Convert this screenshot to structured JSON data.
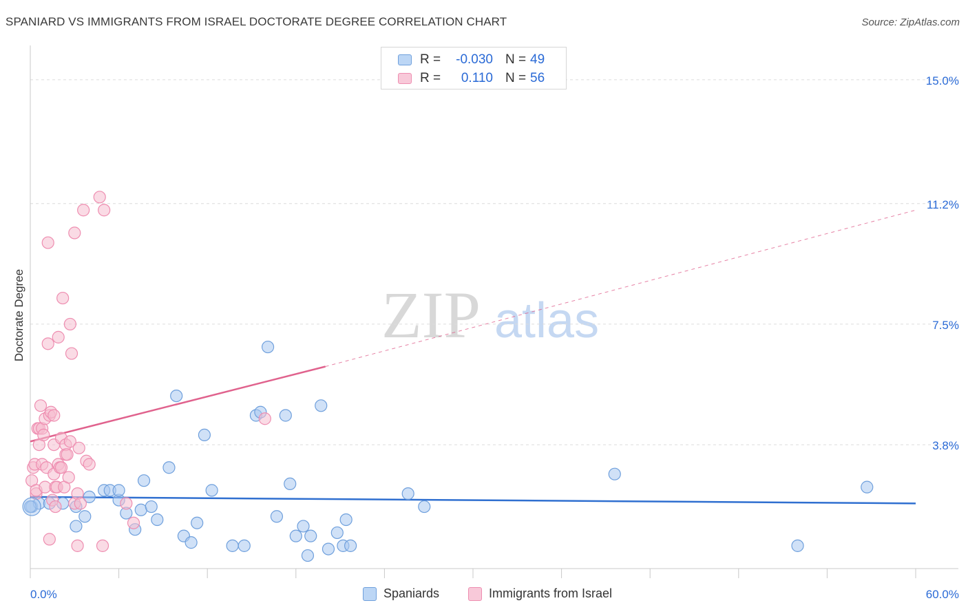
{
  "title": "SPANIARD VS IMMIGRANTS FROM ISRAEL DOCTORATE DEGREE CORRELATION CHART",
  "source": "Source: ZipAtlas.com",
  "watermark": {
    "zip": "ZIP",
    "atlas": "atlas"
  },
  "legend_top": {
    "rows": [
      {
        "r_label": "R =",
        "r_value": "-0.030",
        "n_label": "N =",
        "n_value": "49"
      },
      {
        "r_label": "R =",
        "r_value": "0.110",
        "n_label": "N =",
        "n_value": "56"
      }
    ]
  },
  "colors": {
    "blue_fill": "#a9c8f0",
    "blue_stroke": "#6e9fdc",
    "blue_line": "#2f6fd0",
    "pink_fill": "#f6bdd0",
    "pink_stroke": "#ee8db0",
    "pink_line": "#e0628d",
    "grid": "#dcdcdc",
    "axis_label": "#2a6ad6"
  },
  "chart_data": {
    "type": "scatter",
    "title": "SPANIARD VS IMMIGRANTS FROM ISRAEL DOCTORATE DEGREE CORRELATION CHART",
    "xlabel": "",
    "ylabel": "Doctorate Degree",
    "xlim": [
      0,
      60
    ],
    "ylim": [
      0,
      15.8
    ],
    "x_tick_labels": {
      "left": "0.0%",
      "right": "60.0%"
    },
    "y_ticks": [
      3.8,
      7.5,
      11.2,
      15.0
    ],
    "y_tick_labels": [
      "3.8%",
      "7.5%",
      "11.2%",
      "15.0%"
    ],
    "series": [
      {
        "name": "Spaniards",
        "color": "blue",
        "points": [
          [
            0.1,
            1.9
          ],
          [
            0.6,
            2.0
          ],
          [
            1.3,
            2.0
          ],
          [
            2.2,
            2.0
          ],
          [
            3.1,
            1.3
          ],
          [
            3.1,
            1.9
          ],
          [
            3.7,
            1.6
          ],
          [
            4.0,
            2.2
          ],
          [
            5.0,
            2.4
          ],
          [
            5.4,
            2.4
          ],
          [
            6.0,
            2.1
          ],
          [
            6.0,
            2.4
          ],
          [
            6.5,
            1.7
          ],
          [
            7.1,
            1.2
          ],
          [
            7.5,
            1.8
          ],
          [
            7.7,
            2.7
          ],
          [
            8.2,
            1.9
          ],
          [
            8.6,
            1.5
          ],
          [
            9.4,
            3.1
          ],
          [
            9.9,
            5.3
          ],
          [
            10.4,
            1.0
          ],
          [
            10.9,
            0.8
          ],
          [
            11.3,
            1.4
          ],
          [
            11.8,
            4.1
          ],
          [
            12.3,
            2.4
          ],
          [
            13.7,
            0.7
          ],
          [
            14.5,
            0.7
          ],
          [
            15.3,
            4.7
          ],
          [
            15.6,
            4.8
          ],
          [
            16.1,
            6.8
          ],
          [
            16.7,
            1.6
          ],
          [
            17.3,
            4.7
          ],
          [
            17.6,
            2.6
          ],
          [
            18.0,
            1.0
          ],
          [
            18.5,
            1.3
          ],
          [
            18.8,
            0.4
          ],
          [
            19.0,
            1.0
          ],
          [
            19.7,
            5.0
          ],
          [
            20.2,
            0.6
          ],
          [
            20.8,
            1.1
          ],
          [
            21.2,
            0.7
          ],
          [
            21.4,
            1.5
          ],
          [
            21.7,
            0.7
          ],
          [
            25.6,
            2.3
          ],
          [
            26.7,
            1.9
          ],
          [
            39.6,
            2.9
          ],
          [
            52.0,
            0.7
          ],
          [
            56.7,
            2.5
          ],
          [
            0.0,
            1.9
          ]
        ]
      },
      {
        "name": "Immigrants from Israel",
        "color": "pink",
        "points": [
          [
            0.1,
            2.7
          ],
          [
            0.2,
            3.1
          ],
          [
            0.3,
            3.2
          ],
          [
            0.4,
            2.3
          ],
          [
            0.4,
            2.4
          ],
          [
            0.5,
            4.3
          ],
          [
            0.6,
            3.8
          ],
          [
            0.6,
            4.3
          ],
          [
            0.7,
            5.0
          ],
          [
            0.8,
            3.2
          ],
          [
            0.8,
            4.3
          ],
          [
            0.9,
            4.1
          ],
          [
            1.0,
            2.5
          ],
          [
            1.0,
            4.6
          ],
          [
            1.1,
            3.1
          ],
          [
            1.2,
            6.9
          ],
          [
            1.2,
            10.0
          ],
          [
            1.3,
            0.9
          ],
          [
            1.3,
            4.7
          ],
          [
            1.4,
            4.8
          ],
          [
            1.5,
            2.1
          ],
          [
            1.6,
            2.9
          ],
          [
            1.6,
            3.8
          ],
          [
            1.6,
            4.7
          ],
          [
            1.7,
            2.5
          ],
          [
            1.7,
            1.9
          ],
          [
            1.8,
            2.5
          ],
          [
            1.9,
            3.2
          ],
          [
            1.9,
            7.1
          ],
          [
            2.0,
            3.1
          ],
          [
            2.1,
            3.1
          ],
          [
            2.1,
            4.0
          ],
          [
            2.2,
            8.3
          ],
          [
            2.3,
            2.5
          ],
          [
            2.4,
            3.5
          ],
          [
            2.4,
            3.8
          ],
          [
            2.5,
            3.5
          ],
          [
            2.6,
            2.8
          ],
          [
            2.7,
            7.5
          ],
          [
            2.7,
            3.9
          ],
          [
            2.8,
            6.6
          ],
          [
            3.0,
            2.0
          ],
          [
            3.0,
            10.3
          ],
          [
            3.2,
            0.7
          ],
          [
            3.2,
            2.3
          ],
          [
            3.3,
            3.7
          ],
          [
            3.4,
            2.0
          ],
          [
            3.6,
            11.0
          ],
          [
            3.8,
            3.3
          ],
          [
            4.0,
            3.2
          ],
          [
            4.7,
            11.4
          ],
          [
            4.9,
            0.7
          ],
          [
            5.0,
            11.0
          ],
          [
            6.5,
            2.0
          ],
          [
            7.0,
            1.4
          ],
          [
            15.9,
            4.6
          ]
        ]
      }
    ],
    "trend_lines": [
      {
        "series": "Spaniards",
        "x": [
          0,
          60
        ],
        "y": [
          2.2,
          2.0
        ],
        "style": "solid"
      },
      {
        "series": "Immigrants from Israel",
        "x": [
          0,
          20
        ],
        "y": [
          3.9,
          6.2
        ],
        "style": "solid"
      },
      {
        "series": "Immigrants from Israel",
        "x": [
          20,
          60
        ],
        "y": [
          6.2,
          11.0
        ],
        "style": "dashed"
      }
    ],
    "legend": [
      "Spaniards",
      "Immigrants from Israel"
    ]
  }
}
